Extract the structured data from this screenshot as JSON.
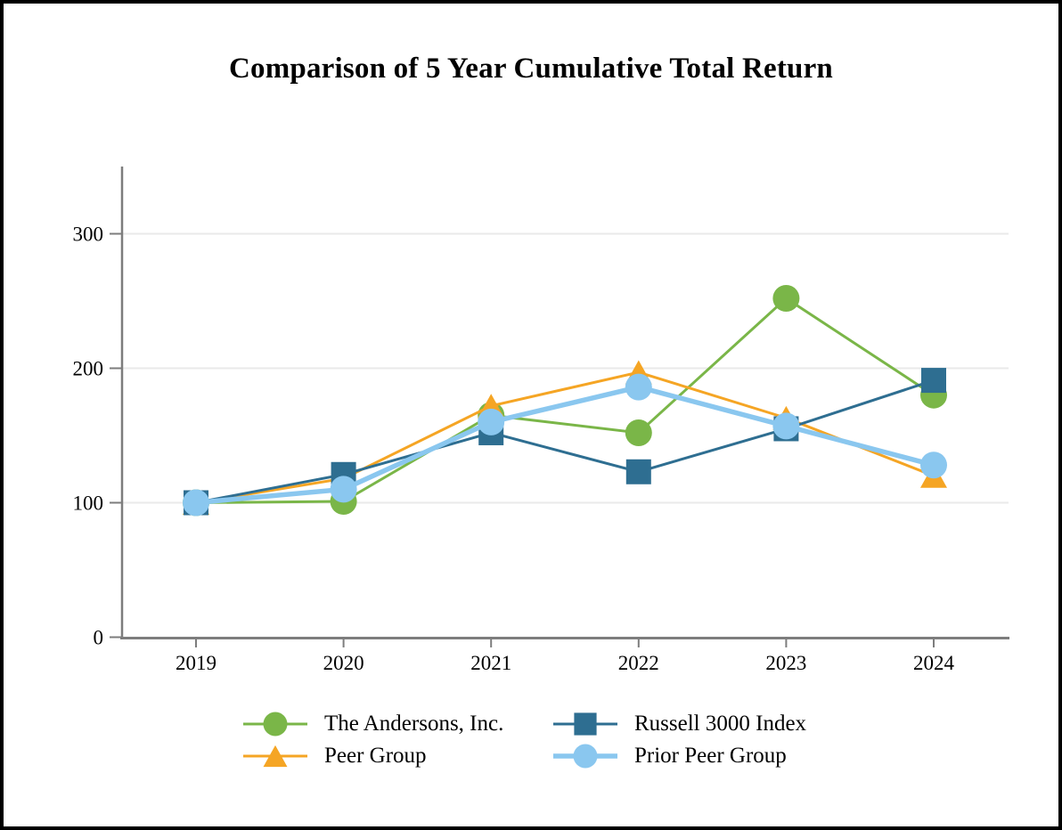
{
  "page": {
    "background_color": "#ffffff",
    "frame_border_color": "#000000"
  },
  "chart_data": {
    "type": "line",
    "title": "Comparison of 5 Year Cumulative Total Return",
    "categories": [
      "2019",
      "2020",
      "2021",
      "2022",
      "2023",
      "2024"
    ],
    "series": [
      {
        "name": "The Andersons, Inc.",
        "marker": "circle",
        "color": "#7ab648",
        "line_width": 3,
        "values": [
          100,
          101,
          165,
          152,
          252,
          180
        ]
      },
      {
        "name": "Russell 3000 Index",
        "marker": "square",
        "color": "#2e6e91",
        "line_width": 3,
        "values": [
          100,
          121,
          152,
          123,
          155,
          191
        ]
      },
      {
        "name": "Peer Group",
        "marker": "triangle",
        "color": "#f5a524",
        "line_width": 3,
        "values": [
          100,
          118,
          172,
          197,
          163,
          120
        ]
      },
      {
        "name": "Prior Peer Group",
        "marker": "circle",
        "color": "#8ac7ef",
        "line_width": 5.5,
        "values": [
          100,
          110,
          160,
          186,
          157,
          128
        ]
      }
    ],
    "draw_order": [
      0,
      2,
      1,
      3
    ],
    "xlabel": "",
    "ylabel": "",
    "ylim": [
      0,
      350
    ],
    "yticks": [
      0,
      100,
      200,
      300
    ],
    "grid": "horizontal at 100/200/300, none at 0",
    "legend_position": "bottom, two columns (row1: Andersons | Russell; row2: Peer | Prior Peer)",
    "axis_color": "#7d7d7d",
    "gridline_color": "#eaeaea",
    "text_color": "#000000",
    "tick_font_size": 23
  }
}
